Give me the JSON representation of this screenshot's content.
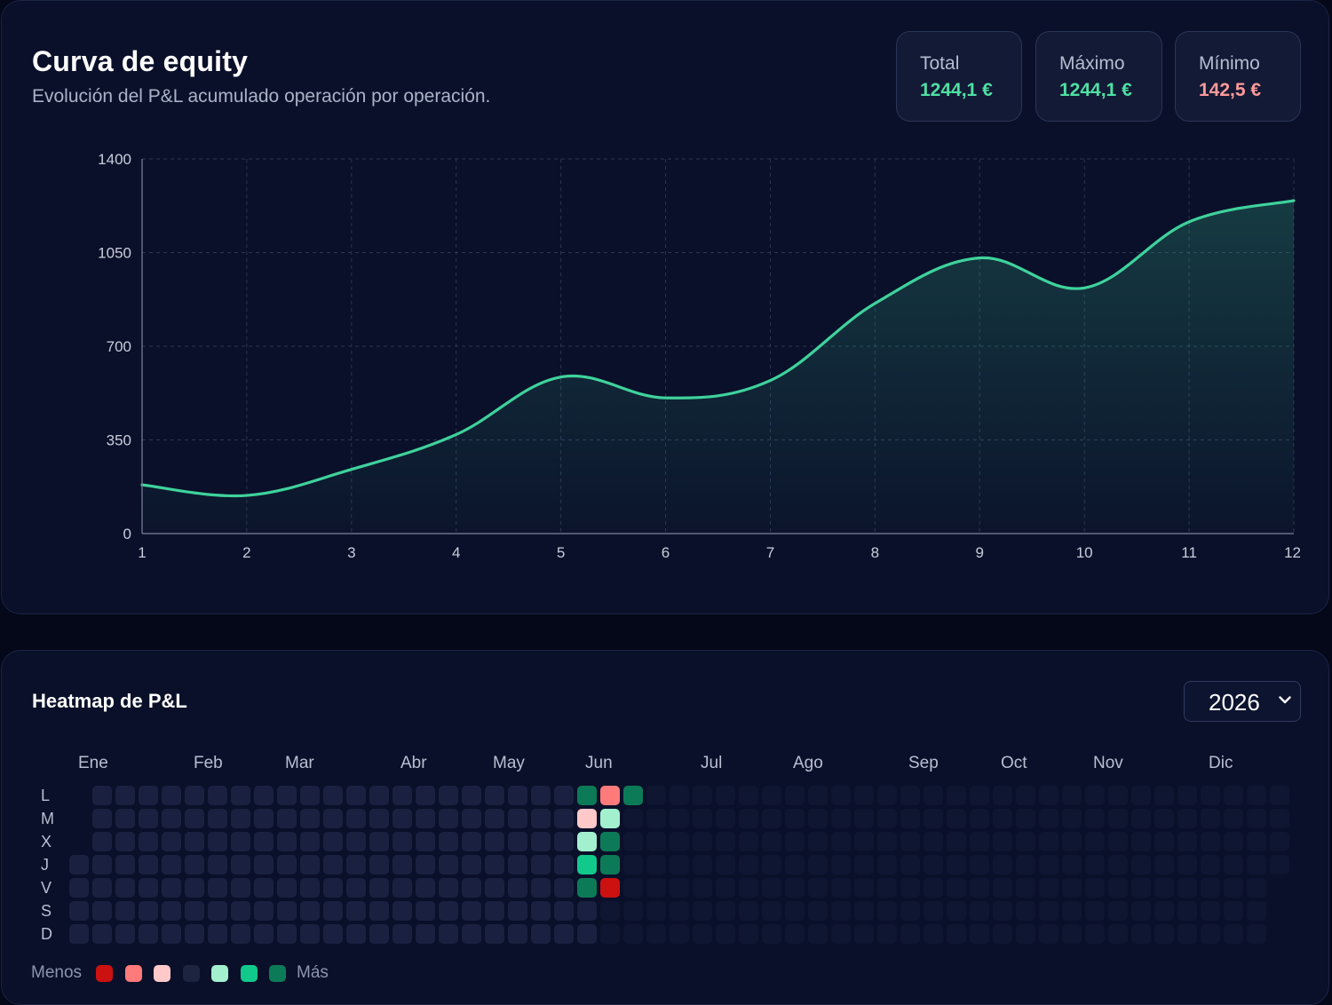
{
  "equity": {
    "title": "Curva de equity",
    "subtitle": "Evolución del P&L acumulado operación por operación.",
    "stats": [
      {
        "label": "Total",
        "value": "1244,1 €",
        "tone": "pos"
      },
      {
        "label": "Máximo",
        "value": "1244,1 €",
        "tone": "pos"
      },
      {
        "label": "Mínimo",
        "value": "142,5 €",
        "tone": "neg"
      }
    ]
  },
  "chart_data": {
    "type": "area",
    "title": "Curva de equity",
    "x": [
      1,
      2,
      3,
      4,
      5,
      6,
      7,
      8,
      9,
      10,
      11,
      12
    ],
    "values": [
      182,
      142.5,
      240,
      370,
      585,
      507,
      572,
      860,
      1030,
      918,
      1165,
      1244.1
    ],
    "xlabel": "",
    "ylabel": "",
    "ylim": [
      0,
      1400
    ],
    "yticks": [
      0,
      350,
      700,
      1050,
      1400
    ],
    "grid": true,
    "line_color": "#3fd29c"
  },
  "heatmap": {
    "title": "Heatmap de P&L",
    "year": "2026",
    "months": [
      "Ene",
      "Feb",
      "Mar",
      "Abr",
      "May",
      "Jun",
      "Jul",
      "Ago",
      "Sep",
      "Oct",
      "Nov",
      "Dic"
    ],
    "days": [
      "L",
      "M",
      "X",
      "J",
      "V",
      "S",
      "D"
    ],
    "legend": {
      "less": "Menos",
      "more": "Más",
      "colors": [
        "#cc1111",
        "#ff7b7b",
        "#ffc9c9",
        "#1c2440",
        "#a3f0cf",
        "#12c98c",
        "#0c7a57"
      ]
    },
    "active_days": [
      {
        "week": 22,
        "day": 0,
        "level": 3
      },
      {
        "week": 23,
        "day": 0,
        "level": -2
      },
      {
        "week": 24,
        "day": 0,
        "level": 3
      },
      {
        "week": 22,
        "day": 1,
        "level": -1
      },
      {
        "week": 23,
        "day": 1,
        "level": 1
      },
      {
        "week": 22,
        "day": 2,
        "level": 1
      },
      {
        "week": 23,
        "day": 2,
        "level": 3
      },
      {
        "week": 22,
        "day": 3,
        "level": 2
      },
      {
        "week": 23,
        "day": 3,
        "level": 3
      },
      {
        "week": 22,
        "day": 4,
        "level": 3
      },
      {
        "week": 23,
        "day": 4,
        "level": -3
      }
    ]
  }
}
